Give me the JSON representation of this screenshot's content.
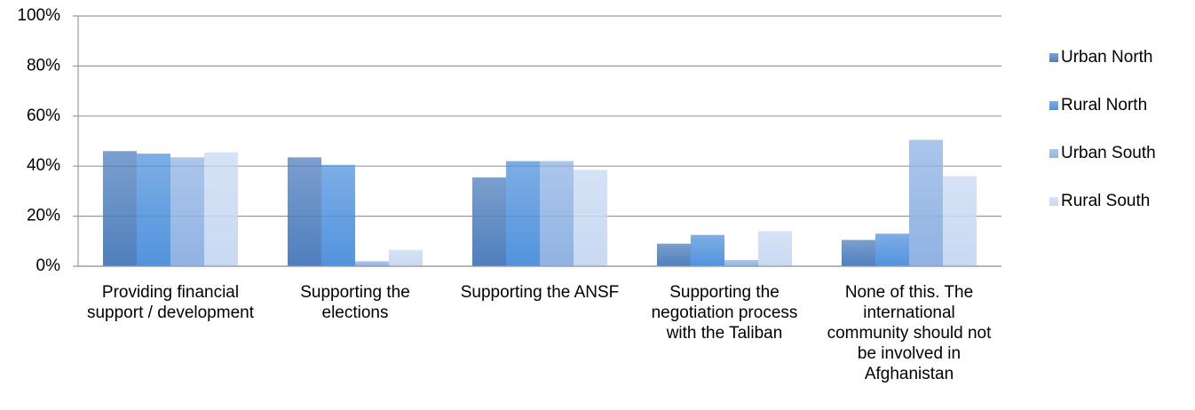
{
  "chart_data": {
    "type": "bar",
    "categories": [
      "Providing financial support / development",
      "Supporting the elections",
      "Supporting the ANSF",
      "Supporting the negotiation process with the Taliban",
      "None of this. The international community should not be involved in Afghanistan"
    ],
    "series": [
      {
        "name": "Urban North",
        "color": "#4f7fbd",
        "values": [
          46,
          43.5,
          35.5,
          9,
          10.5
        ]
      },
      {
        "name": "Rural North",
        "color": "#5293dd",
        "values": [
          45,
          40.5,
          42,
          12.5,
          13
        ]
      },
      {
        "name": "Urban South",
        "color": "#90b3e3",
        "values": [
          43.5,
          2,
          42,
          2.5,
          50.5
        ]
      },
      {
        "name": "Rural South",
        "color": "#c8d9f2",
        "values": [
          45.5,
          6.5,
          38.5,
          14,
          36
        ]
      }
    ],
    "ylim": [
      0,
      100
    ],
    "yticks": [
      {
        "value": 0,
        "label": "0%"
      },
      {
        "value": 20,
        "label": "20%"
      },
      {
        "value": 40,
        "label": "40%"
      },
      {
        "value": 60,
        "label": "60%"
      },
      {
        "value": 80,
        "label": "80%"
      },
      {
        "value": 100,
        "label": "100%"
      }
    ],
    "grid": true,
    "legend": "right"
  }
}
